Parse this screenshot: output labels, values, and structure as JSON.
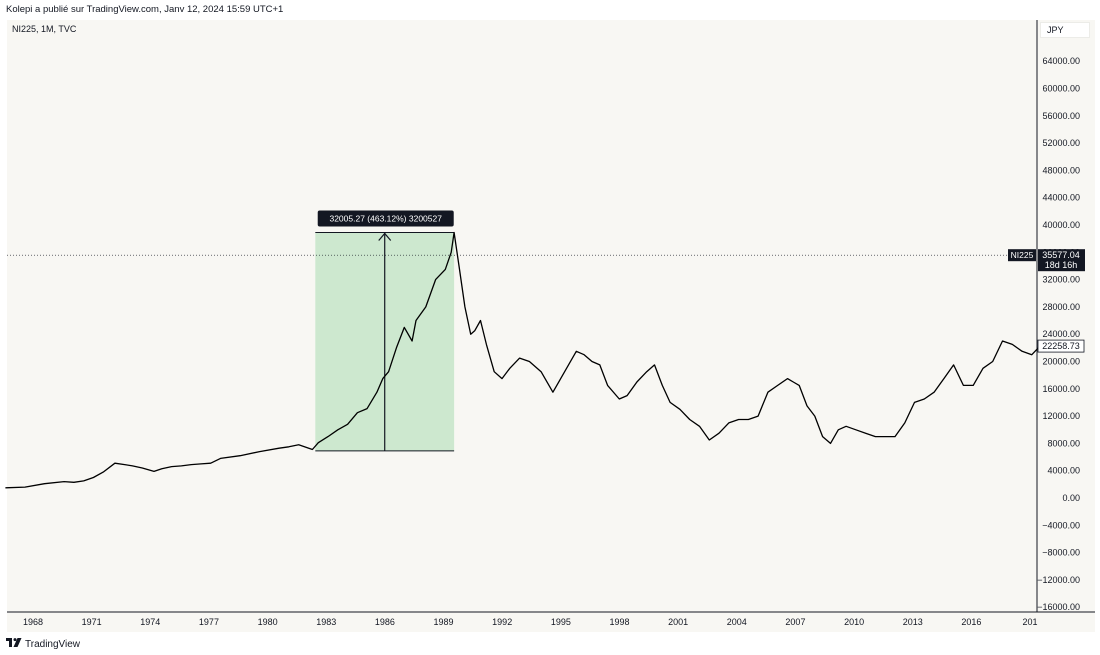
{
  "header": {
    "published": "Kolepi a publié sur TradingView.com, Janv 12, 2024 15:59 UTC+1"
  },
  "legend": {
    "symbol_text": "NI225, 1M, TVC"
  },
  "axis": {
    "currency": "JPY"
  },
  "footer": {
    "brand": "TradingView"
  },
  "colors": {
    "background": "#f8f7f3",
    "line": "#000000",
    "range_fill": "#cde8cf",
    "label_bg": "#131722"
  },
  "chart_data": {
    "type": "line",
    "title": "",
    "xlabel": "",
    "ylabel": "",
    "x_ticks": [
      "1968",
      "1971",
      "1974",
      "1977",
      "1980",
      "1983",
      "1986",
      "1989",
      "1992",
      "1995",
      "1998",
      "2001",
      "2004",
      "2007",
      "2010",
      "2013",
      "2016",
      "201"
    ],
    "y_ticks": [
      "64000.00",
      "60000.00",
      "56000.00",
      "52000.00",
      "48000.00",
      "44000.00",
      "40000.00",
      "36000.00",
      "32000.00",
      "28000.00",
      "24000.00",
      "20000.00",
      "16000.00",
      "12000.00",
      "8000.00",
      "4000.00",
      "0.00",
      "−4000.00",
      "−8000.00",
      "−12000.00",
      "−16000.00"
    ],
    "ylim": [
      -16000,
      66000
    ],
    "xlim": [
      1967.0,
      2020.2
    ],
    "series": [
      {
        "x": [
          1967.0,
          1968.0,
          1969.0,
          1970.0,
          1970.5,
          1971.0,
          1971.5,
          1972.0,
          1972.6,
          1973.1,
          1973.5,
          1974.0,
          1974.6,
          1975.0,
          1975.5,
          1976.0,
          1976.5,
          1977.0,
          1977.5,
          1978.0,
          1979.0,
          1980.0,
          1981.0,
          1981.5,
          1982.0,
          1982.7,
          1983.0,
          1983.5,
          1984.0,
          1984.5,
          1985.0,
          1985.5,
          1986.0,
          1986.3,
          1986.6,
          1987.0,
          1987.4,
          1987.8,
          1988.0,
          1988.5,
          1989.0,
          1989.5,
          1989.8,
          1989.95,
          1990.2,
          1990.5,
          1990.8,
          1991.0,
          1991.3,
          1991.6,
          1992.0,
          1992.4,
          1992.8,
          1993.3,
          1993.8,
          1994.4,
          1995.0,
          1995.4,
          1995.8,
          1996.2,
          1996.6,
          1997.0,
          1997.4,
          1997.8,
          1998.4,
          1998.8,
          1999.3,
          1999.8,
          2000.2,
          2000.6,
          2001.0,
          2001.5,
          2002.0,
          2002.5,
          2003.0,
          2003.5,
          2004.0,
          2004.5,
          2005.0,
          2005.5,
          2006.0,
          2006.5,
          2007.0,
          2007.3,
          2007.6,
          2008.0,
          2008.4,
          2008.8,
          2009.2,
          2009.6,
          2010.0,
          2010.5,
          2011.0,
          2011.5,
          2012.0,
          2012.5,
          2013.0,
          2013.5,
          2014.0,
          2014.5,
          2015.0,
          2015.5,
          2016.0,
          2016.5,
          2017.0,
          2017.5,
          2018.0,
          2018.5,
          2019.0,
          2019.5,
          2020.0,
          2020.2
        ],
        "y": [
          1500,
          1600,
          2100,
          2400,
          2300,
          2500,
          3000,
          3800,
          5100,
          4900,
          4700,
          4400,
          3900,
          4300,
          4600,
          4700,
          4900,
          5000,
          5100,
          5800,
          6200,
          6800,
          7300,
          7500,
          7800,
          7100,
          8100,
          9000,
          10000,
          10800,
          12500,
          13100,
          15500,
          17500,
          18500,
          22000,
          25000,
          23000,
          26000,
          28000,
          32000,
          33500,
          36000,
          38900,
          34000,
          28000,
          24000,
          24500,
          26000,
          22500,
          18500,
          17500,
          19000,
          20500,
          20000,
          18500,
          15500,
          17500,
          19500,
          21500,
          21000,
          20000,
          19500,
          16500,
          14500,
          15000,
          17000,
          18500,
          19500,
          16500,
          14000,
          13000,
          11500,
          10500,
          8500,
          9500,
          11000,
          11500,
          11500,
          12000,
          15500,
          16500,
          17500,
          17000,
          16500,
          13500,
          12000,
          9000,
          8000,
          10000,
          10500,
          10000,
          9500,
          9000,
          9000,
          9000,
          11000,
          14000,
          14500,
          15500,
          17500,
          19500,
          16500,
          16500,
          19000,
          20000,
          23000,
          22500,
          21500,
          21000,
          22500,
          22258.73
        ]
      }
    ],
    "price_range": {
      "x_start": 1982.85,
      "x_end": 1989.95,
      "y_start": 6900,
      "y_end": 38905.27,
      "label": "32005.27 (463.12%) 3200527"
    },
    "current_price": {
      "symbol": "NI225",
      "value": "35577.04",
      "countdown": "18d 16h",
      "y": 35577.04
    },
    "last_value_label": {
      "value": "22258.73",
      "y": 22258.73
    }
  }
}
